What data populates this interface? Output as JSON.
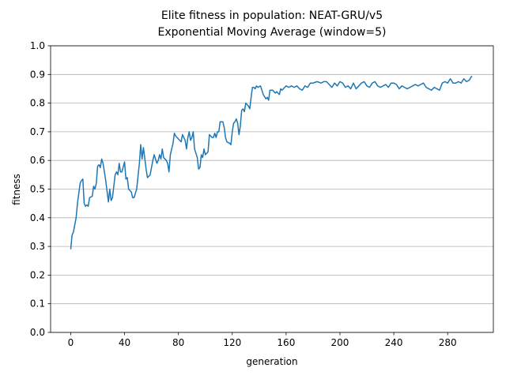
{
  "chart_data": {
    "type": "line",
    "title": "Elite fitness in population: NEAT-GRU/v5",
    "subtitle": "Exponential Moving Average (window=5)",
    "x_label": "generation",
    "y_label": "fitness",
    "x": [
      0,
      1,
      2,
      4,
      5,
      7,
      8,
      9,
      10,
      11,
      12,
      13,
      14,
      16,
      17,
      18,
      19,
      20,
      21,
      22,
      23,
      24,
      26,
      28,
      29,
      30,
      31,
      33,
      34,
      35,
      36,
      37,
      38,
      40,
      41,
      42,
      43,
      45,
      46,
      47,
      49,
      51,
      52,
      53,
      54,
      56,
      57,
      59,
      61,
      62,
      64,
      65,
      66,
      67,
      68,
      69,
      71,
      72,
      73,
      74,
      76,
      77,
      78,
      80,
      82,
      83,
      85,
      86,
      87,
      88,
      89,
      90,
      91,
      92,
      94,
      95,
      96,
      97,
      98,
      99,
      100,
      101,
      102,
      103,
      105,
      106,
      107,
      108,
      109,
      110,
      111,
      113,
      114,
      115,
      116,
      118,
      119,
      120,
      121,
      122,
      123,
      124,
      125,
      126,
      127,
      128,
      129,
      130,
      132,
      133,
      134,
      135,
      136,
      137,
      138,
      139,
      141,
      143,
      145,
      146,
      147,
      148,
      150,
      152,
      153,
      155,
      156,
      157,
      159,
      160,
      162,
      164,
      166,
      168,
      170,
      172,
      174,
      176,
      178,
      180,
      183,
      186,
      188,
      190,
      192,
      194,
      196,
      198,
      200,
      202,
      204,
      206,
      208,
      210,
      212,
      214,
      216,
      218,
      220,
      222,
      224,
      226,
      228,
      230,
      232,
      234,
      236,
      238,
      240,
      242,
      244,
      246,
      248,
      250,
      252,
      254,
      256,
      258,
      260,
      262,
      264,
      266,
      268,
      270,
      272,
      274,
      276,
      278,
      280,
      282,
      284,
      286,
      288,
      290,
      292,
      294,
      296,
      298
    ],
    "series": [
      {
        "name": "fitness",
        "color": "#1f77b4",
        "values": [
          0.29,
          0.34,
          0.35,
          0.4,
          0.45,
          0.52,
          0.53,
          0.535,
          0.45,
          0.44,
          0.445,
          0.44,
          0.47,
          0.475,
          0.51,
          0.5,
          0.52,
          0.58,
          0.585,
          0.575,
          0.605,
          0.59,
          0.53,
          0.455,
          0.5,
          0.46,
          0.47,
          0.55,
          0.56,
          0.55,
          0.59,
          0.56,
          0.56,
          0.595,
          0.535,
          0.54,
          0.5,
          0.49,
          0.47,
          0.47,
          0.5,
          0.59,
          0.655,
          0.605,
          0.645,
          0.57,
          0.54,
          0.55,
          0.6,
          0.62,
          0.59,
          0.6,
          0.62,
          0.605,
          0.64,
          0.61,
          0.6,
          0.59,
          0.56,
          0.62,
          0.66,
          0.695,
          0.685,
          0.675,
          0.665,
          0.69,
          0.67,
          0.64,
          0.68,
          0.7,
          0.67,
          0.68,
          0.7,
          0.64,
          0.61,
          0.57,
          0.575,
          0.62,
          0.61,
          0.64,
          0.62,
          0.625,
          0.63,
          0.69,
          0.68,
          0.68,
          0.695,
          0.68,
          0.7,
          0.7,
          0.735,
          0.735,
          0.715,
          0.68,
          0.665,
          0.66,
          0.655,
          0.7,
          0.73,
          0.735,
          0.745,
          0.73,
          0.69,
          0.72,
          0.775,
          0.78,
          0.77,
          0.8,
          0.79,
          0.78,
          0.82,
          0.855,
          0.855,
          0.85,
          0.86,
          0.855,
          0.86,
          0.83,
          0.815,
          0.82,
          0.81,
          0.845,
          0.845,
          0.835,
          0.84,
          0.83,
          0.85,
          0.845,
          0.855,
          0.86,
          0.855,
          0.86,
          0.855,
          0.86,
          0.85,
          0.845,
          0.86,
          0.855,
          0.87,
          0.87,
          0.875,
          0.87,
          0.875,
          0.875,
          0.865,
          0.855,
          0.87,
          0.86,
          0.875,
          0.87,
          0.855,
          0.86,
          0.85,
          0.87,
          0.85,
          0.86,
          0.87,
          0.875,
          0.86,
          0.855,
          0.87,
          0.875,
          0.86,
          0.855,
          0.86,
          0.865,
          0.855,
          0.87,
          0.87,
          0.865,
          0.85,
          0.86,
          0.855,
          0.85,
          0.855,
          0.86,
          0.865,
          0.86,
          0.865,
          0.87,
          0.855,
          0.85,
          0.845,
          0.855,
          0.85,
          0.845,
          0.87,
          0.875,
          0.87,
          0.885,
          0.87,
          0.87,
          0.875,
          0.87,
          0.885,
          0.875,
          0.88,
          0.895
        ]
      }
    ],
    "xlim": [
      -14.95,
      313.95
    ],
    "ylim": [
      0,
      1
    ],
    "xticks": [
      0,
      40,
      80,
      120,
      160,
      200,
      240,
      280
    ],
    "yticks": [
      {
        "value": 0,
        "label": "0.0"
      },
      0.1,
      0.2,
      0.3,
      0.4,
      0.5,
      0.6,
      0.7,
      0.8,
      0.9,
      {
        "value": 1,
        "label": "1.0"
      }
    ],
    "grid": "y"
  }
}
